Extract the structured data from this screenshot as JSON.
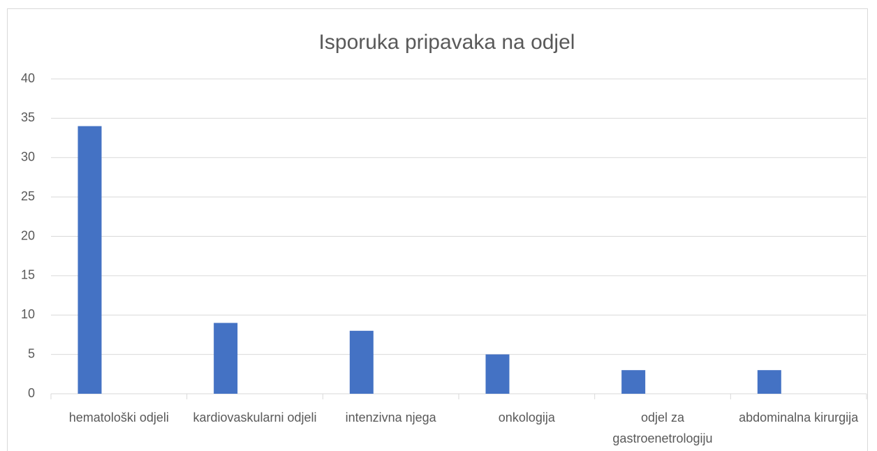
{
  "chart_data": {
    "type": "bar",
    "title": "Isporuka pripavaka na odjel",
    "categories": [
      "hematološki odjeli",
      "kardiovaskularni odjeli",
      "intenzivna njega",
      "onkologija",
      "odjel za gastroenetrologiju",
      "abdominalna kirurgija"
    ],
    "values": [
      34,
      9,
      8,
      5,
      3,
      3
    ],
    "color": "#4472c4",
    "ylim": [
      0,
      40
    ],
    "yticks": [
      0,
      5,
      10,
      15,
      20,
      25,
      30,
      35,
      40
    ],
    "grid": true
  }
}
